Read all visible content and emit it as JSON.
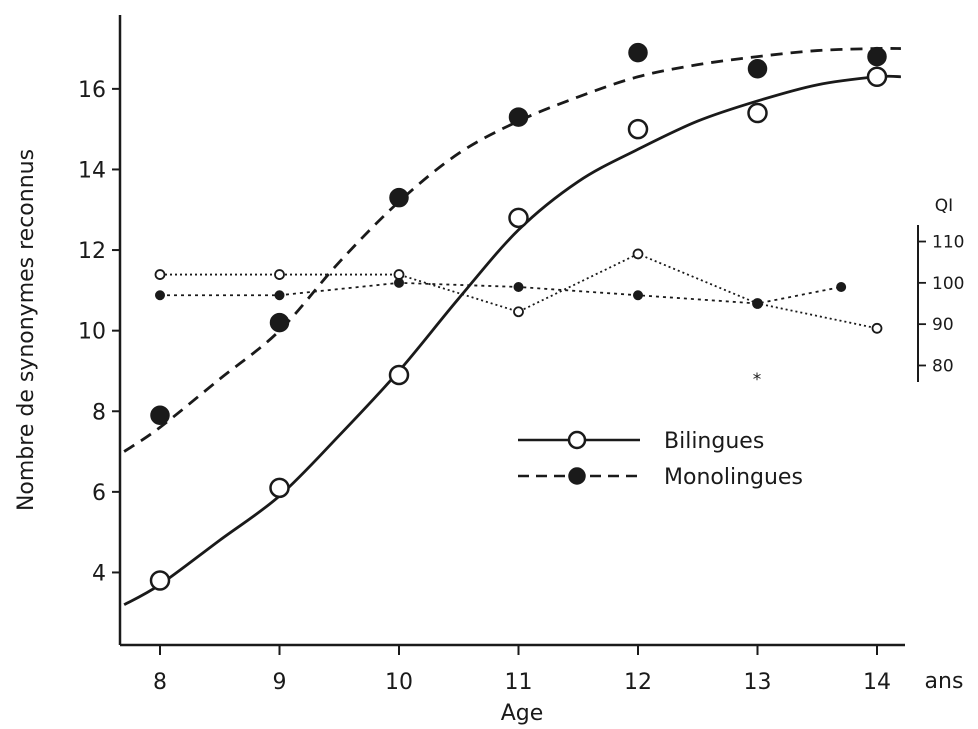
{
  "chart_data": {
    "type": "line",
    "title": "",
    "xlabel": "Age",
    "x_unit": "ans",
    "ylabel": "Nombre de synonymes reconnus",
    "y2label": "QI",
    "x": [
      8,
      9,
      10,
      11,
      12,
      13,
      14
    ],
    "xlim": [
      7.7,
      14.2
    ],
    "ylim": [
      2.2,
      17.5
    ],
    "yticks": [
      4,
      6,
      8,
      10,
      12,
      14,
      16
    ],
    "y2ticks": [
      80,
      90,
      100,
      110
    ],
    "y2range": [
      76,
      114
    ],
    "legend_position": "center-right",
    "colors": {
      "ink": "#1a1a1a",
      "background": "#ffffff"
    },
    "series": [
      {
        "name": "Bilingues",
        "marker": "open-circle",
        "line": "solid",
        "axis": "left",
        "values": [
          3.8,
          6.1,
          8.9,
          12.8,
          15.0,
          15.4,
          16.3
        ],
        "fit_curve": [
          [
            7.7,
            3.2
          ],
          [
            8.0,
            3.7
          ],
          [
            8.5,
            4.8
          ],
          [
            9.0,
            5.9
          ],
          [
            9.5,
            7.4
          ],
          [
            10.0,
            9.0
          ],
          [
            10.5,
            10.8
          ],
          [
            11.0,
            12.5
          ],
          [
            11.5,
            13.7
          ],
          [
            12.0,
            14.5
          ],
          [
            12.5,
            15.2
          ],
          [
            13.0,
            15.7
          ],
          [
            13.5,
            16.1
          ],
          [
            14.0,
            16.3
          ],
          [
            14.2,
            16.3
          ]
        ]
      },
      {
        "name": "Monolingues",
        "marker": "filled-circle",
        "line": "dashed",
        "axis": "left",
        "values": [
          7.9,
          10.2,
          13.3,
          15.3,
          16.9,
          16.5,
          16.8
        ],
        "fit_curve": [
          [
            7.7,
            7.0
          ],
          [
            8.0,
            7.6
          ],
          [
            8.5,
            8.8
          ],
          [
            9.0,
            10.0
          ],
          [
            9.5,
            11.7
          ],
          [
            10.0,
            13.2
          ],
          [
            10.5,
            14.4
          ],
          [
            11.0,
            15.2
          ],
          [
            11.5,
            15.8
          ],
          [
            12.0,
            16.3
          ],
          [
            12.5,
            16.6
          ],
          [
            13.0,
            16.8
          ],
          [
            13.5,
            16.95
          ],
          [
            14.0,
            17.0
          ],
          [
            14.2,
            17.0
          ]
        ]
      },
      {
        "name": "Bilingues (QI)",
        "marker": "small-open-circle",
        "line": "dotted",
        "axis": "right",
        "x": [
          8,
          9,
          10,
          11,
          12,
          13,
          14
        ],
        "values": [
          102,
          102,
          102,
          93,
          107,
          95,
          89
        ]
      },
      {
        "name": "Monolingues (QI)",
        "marker": "small-filled-circle",
        "line": "dotted",
        "axis": "right",
        "x": [
          8,
          9,
          10,
          11,
          12,
          13,
          13.7
        ],
        "values": [
          97,
          97,
          100,
          99,
          97,
          95,
          99
        ]
      }
    ],
    "annotations": [
      "*"
    ]
  }
}
